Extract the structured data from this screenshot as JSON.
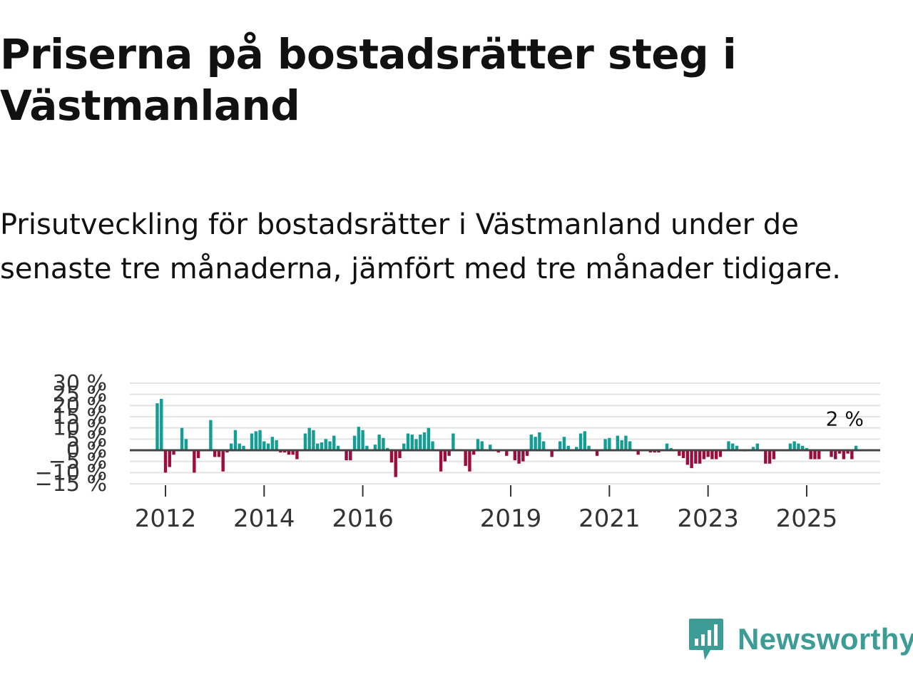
{
  "title": "Priserna på bostadsrätter steg i Västmanland",
  "subtitle": "Prisutveckling för bostadsrätter i Västmanland under de senaste tre månaderna, jämfört med tre månader tidigare.",
  "brand": {
    "name": "Newsworthy",
    "color": "#3e9c96"
  },
  "colors": {
    "positive": "#139e95",
    "negative": "#9b0d3d",
    "grid": "#e2e2e2",
    "zero": "#444444"
  },
  "chart_data": {
    "type": "bar",
    "title": "Priserna på bostadsrätter steg i Västmanland",
    "xlabel": "",
    "ylabel": "",
    "unit": "%",
    "ylim": [
      -15,
      30
    ],
    "y_ticks": [
      30,
      25,
      20,
      15,
      10,
      5,
      0,
      -5,
      -10,
      -15
    ],
    "y_tick_labels": [
      "30 %",
      "25 %",
      "20 %",
      "15 %",
      "10 %",
      "5 %",
      "0 %",
      "−5 %",
      "−10 %",
      "−15 %"
    ],
    "x_start": 2011.75,
    "x_step": 0.0833333,
    "x_ticks": [
      2012,
      2014,
      2016,
      2019,
      2021,
      2023,
      2025
    ],
    "annotation": "2 %",
    "values": [
      0,
      21,
      23,
      -10,
      -7.5,
      -2,
      0,
      10,
      5,
      0,
      -10,
      -3.5,
      0,
      0,
      13.5,
      -3,
      -3,
      -9.5,
      -1,
      3,
      9,
      3,
      2,
      0,
      7.5,
      8.5,
      9,
      4,
      3,
      6,
      4.5,
      -1,
      -1,
      -2,
      -2,
      -4,
      0,
      7.5,
      10,
      9,
      3,
      3.5,
      5,
      4,
      6.5,
      2,
      0,
      -4.5,
      -4.5,
      6.5,
      10.5,
      9,
      2,
      0,
      2.5,
      7,
      5.5,
      1,
      -5.5,
      -12,
      -3.5,
      3,
      7.5,
      7,
      5,
      7,
      8,
      10,
      4,
      0,
      -9.5,
      -5,
      -2.5,
      7.5,
      0.5,
      0,
      -7,
      -9.5,
      -2,
      5,
      4,
      0,
      2.5,
      0,
      -1,
      0,
      -2.5,
      0,
      -4.5,
      -6,
      -5,
      -2.5,
      7,
      6,
      8,
      4,
      0,
      -3,
      0,
      4,
      6,
      2,
      0,
      1.5,
      7.5,
      8.5,
      2,
      0,
      -2.5,
      0,
      5,
      5.5,
      0,
      6.5,
      4.5,
      6.5,
      4,
      0,
      -2,
      0,
      0,
      -1,
      -1,
      -1,
      0,
      3,
      1,
      0,
      -2.5,
      -3.5,
      -6.5,
      -8,
      -6,
      -6,
      -4,
      -3,
      -4,
      -4,
      -3,
      0,
      4,
      3,
      2,
      0,
      -0.5,
      0,
      1.5,
      3,
      0,
      -6,
      -6,
      -4,
      0,
      0,
      0,
      3,
      4,
      3,
      2,
      1,
      -4,
      -4,
      -4,
      0,
      0,
      -3,
      -4,
      -1.5,
      -4,
      -1.5,
      -4,
      2
    ]
  }
}
